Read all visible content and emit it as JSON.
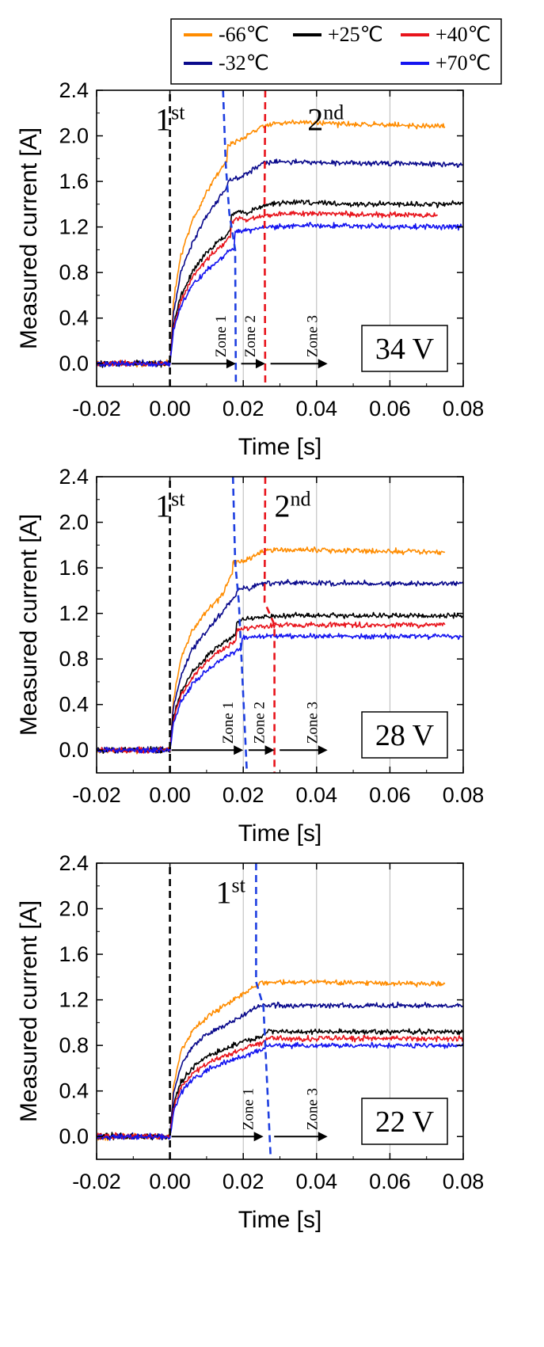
{
  "legend": {
    "entries": [
      {
        "label": "-66℃",
        "color": "#FF8C00"
      },
      {
        "label": "+25℃",
        "color": "#000000"
      },
      {
        "label": "+40℃",
        "color": "#E8141C"
      },
      {
        "label": "-32℃",
        "color": "#0A0A8C"
      },
      {
        "label": "+70℃",
        "color": "#1414F0"
      }
    ]
  },
  "chart_data": [
    {
      "type": "line",
      "voltage_label": "34 V",
      "xlabel": "Time [s]",
      "ylabel": "Measured current [A]",
      "xlim": [
        -0.02,
        0.08
      ],
      "ylim": [
        -0.2,
        2.4
      ],
      "xticks": [
        "-0.02",
        "0.00",
        "0.02",
        "0.04",
        "0.06",
        "0.08"
      ],
      "yticks": [
        "0.0",
        "0.4",
        "0.8",
        "1.2",
        "1.6",
        "2.0",
        "2.4"
      ],
      "vertical_gridlines_at": [
        0.02,
        0.04,
        0.06
      ],
      "x_end": 0.075,
      "series": [
        {
          "name": "-66℃",
          "color": "#FF8C00",
          "x": [
            0,
            0.001,
            0.003,
            0.006,
            0.01,
            0.014,
            0.0155,
            0.0158,
            0.02,
            0.026,
            0.035,
            0.05,
            0.075
          ],
          "y": [
            0,
            0.55,
            0.95,
            1.25,
            1.5,
            1.72,
            1.78,
            1.92,
            1.98,
            2.1,
            2.12,
            2.1,
            2.08
          ]
        },
        {
          "name": "-32℃",
          "color": "#0A0A8C",
          "x": [
            0,
            0.001,
            0.003,
            0.006,
            0.01,
            0.014,
            0.0155,
            0.0158,
            0.02,
            0.026,
            0.035,
            0.05,
            0.08
          ],
          "y": [
            0,
            0.45,
            0.8,
            1.05,
            1.3,
            1.48,
            1.55,
            1.6,
            1.65,
            1.77,
            1.77,
            1.76,
            1.75
          ]
        },
        {
          "name": "+25℃",
          "color": "#000000",
          "x": [
            0,
            0.001,
            0.003,
            0.006,
            0.01,
            0.015,
            0.0165,
            0.0168,
            0.019,
            0.021,
            0.026,
            0.035,
            0.05,
            0.08
          ],
          "y": [
            0,
            0.35,
            0.6,
            0.8,
            0.98,
            1.12,
            1.18,
            1.3,
            1.34,
            1.32,
            1.4,
            1.42,
            1.4,
            1.4
          ]
        },
        {
          "name": "+40℃",
          "color": "#E8141C",
          "x": [
            0,
            0.001,
            0.003,
            0.006,
            0.01,
            0.015,
            0.0165,
            0.0168,
            0.019,
            0.021,
            0.026,
            0.035,
            0.05,
            0.073
          ],
          "y": [
            0,
            0.32,
            0.55,
            0.75,
            0.92,
            1.06,
            1.12,
            1.25,
            1.28,
            1.26,
            1.3,
            1.32,
            1.31,
            1.3
          ]
        },
        {
          "name": "+70℃",
          "color": "#1414F0",
          "x": [
            0,
            0.001,
            0.003,
            0.006,
            0.01,
            0.015,
            0.0175,
            0.0178,
            0.02,
            0.026,
            0.035,
            0.05,
            0.08
          ],
          "y": [
            0,
            0.3,
            0.5,
            0.68,
            0.82,
            0.95,
            1.02,
            1.15,
            1.16,
            1.2,
            1.21,
            1.21,
            1.2
          ]
        }
      ],
      "dashed_markers": [
        {
          "color": "#000000",
          "points": [
            [
              0,
              -0.2
            ],
            [
              0,
              2.4
            ]
          ]
        },
        {
          "color": "#1E3FE0",
          "points": [
            [
              0.0145,
              2.4
            ],
            [
              0.0152,
              1.76
            ],
            [
              0.0162,
              1.32
            ],
            [
              0.0178,
              1.0
            ],
            [
              0.018,
              -0.2
            ]
          ]
        },
        {
          "color": "#E8141C",
          "points": [
            [
              0.026,
              2.4
            ],
            [
              0.0258,
              1.4
            ],
            [
              0.026,
              -0.2
            ]
          ]
        }
      ],
      "stage_labels": [
        {
          "base": "1",
          "sup": "st",
          "x": -0.004,
          "y": 2.05
        },
        {
          "base": "2",
          "sup": "nd",
          "x": 0.0375,
          "y": 2.05
        }
      ],
      "zones": [
        {
          "label": "Zone 1",
          "x_start": 0.0,
          "x_end": 0.018
        },
        {
          "label": "Zone 2",
          "x_start": 0.019,
          "x_end": 0.026
        },
        {
          "label": "Zone 3",
          "x_start": 0.027,
          "x_end": 0.043
        }
      ]
    },
    {
      "type": "line",
      "voltage_label": "28 V",
      "xlabel": "Time [s]",
      "ylabel": "Measured current [A]",
      "xlim": [
        -0.02,
        0.08
      ],
      "ylim": [
        -0.2,
        2.4
      ],
      "xticks": [
        "-0.02",
        "0.00",
        "0.02",
        "0.04",
        "0.06",
        "0.08"
      ],
      "yticks": [
        "0.0",
        "0.4",
        "0.8",
        "1.2",
        "1.6",
        "2.0",
        "2.4"
      ],
      "vertical_gridlines_at": [
        0.02,
        0.04,
        0.06
      ],
      "x_end": 0.075,
      "series": [
        {
          "name": "-66℃",
          "color": "#FF8C00",
          "x": [
            0,
            0.001,
            0.003,
            0.006,
            0.01,
            0.014,
            0.017,
            0.0172,
            0.02,
            0.026,
            0.035,
            0.05,
            0.075
          ],
          "y": [
            0,
            0.45,
            0.8,
            1.05,
            1.22,
            1.35,
            1.55,
            1.64,
            1.66,
            1.75,
            1.76,
            1.75,
            1.74
          ]
        },
        {
          "name": "-32℃",
          "color": "#0A0A8C",
          "x": [
            0,
            0.001,
            0.003,
            0.006,
            0.01,
            0.014,
            0.018,
            0.0182,
            0.021,
            0.026,
            0.035,
            0.05,
            0.08
          ],
          "y": [
            0,
            0.38,
            0.65,
            0.88,
            1.05,
            1.2,
            1.36,
            1.4,
            1.42,
            1.47,
            1.47,
            1.46,
            1.46
          ]
        },
        {
          "name": "+25℃",
          "color": "#000000",
          "x": [
            0,
            0.001,
            0.003,
            0.006,
            0.01,
            0.015,
            0.018,
            0.0182,
            0.021,
            0.026,
            0.035,
            0.05,
            0.08
          ],
          "y": [
            0,
            0.3,
            0.5,
            0.68,
            0.82,
            0.96,
            1.02,
            1.12,
            1.15,
            1.17,
            1.18,
            1.18,
            1.18
          ]
        },
        {
          "name": "+40℃",
          "color": "#E8141C",
          "x": [
            0,
            0.001,
            0.003,
            0.006,
            0.01,
            0.015,
            0.018,
            0.0182,
            0.021,
            0.026,
            0.035,
            0.05,
            0.075
          ],
          "y": [
            0,
            0.28,
            0.47,
            0.63,
            0.78,
            0.9,
            0.96,
            1.05,
            1.08,
            1.09,
            1.1,
            1.1,
            1.1
          ]
        },
        {
          "name": "+70℃",
          "color": "#1414F0",
          "x": [
            0,
            0.001,
            0.003,
            0.006,
            0.01,
            0.015,
            0.0195,
            0.0197,
            0.022,
            0.026,
            0.035,
            0.05,
            0.08
          ],
          "y": [
            0,
            0.25,
            0.42,
            0.57,
            0.7,
            0.82,
            0.9,
            0.98,
            1.0,
            1.0,
            1.0,
            1.0,
            1.0
          ]
        }
      ],
      "dashed_markers": [
        {
          "color": "#000000",
          "points": [
            [
              0,
              -0.2
            ],
            [
              0,
              2.4
            ]
          ]
        },
        {
          "color": "#1E3FE0",
          "points": [
            [
              0.0172,
              2.4
            ],
            [
              0.0178,
              1.65
            ],
            [
              0.0188,
              1.3
            ],
            [
              0.021,
              -0.2
            ]
          ]
        },
        {
          "color": "#E8141C",
          "points": [
            [
              0.026,
              2.4
            ],
            [
              0.0258,
              1.3
            ],
            [
              0.0285,
              1.1
            ],
            [
              0.0285,
              -0.2
            ]
          ]
        }
      ],
      "stage_labels": [
        {
          "base": "1",
          "sup": "st",
          "x": -0.004,
          "y": 2.05
        },
        {
          "base": "2",
          "sup": "nd",
          "x": 0.0285,
          "y": 2.05
        }
      ],
      "zones": [
        {
          "label": "Zone 1",
          "x_start": 0.0,
          "x_end": 0.02
        },
        {
          "label": "Zone 2",
          "x_start": 0.021,
          "x_end": 0.0285
        },
        {
          "label": "Zone 3",
          "x_start": 0.0295,
          "x_end": 0.043
        }
      ]
    },
    {
      "type": "line",
      "voltage_label": "22 V",
      "xlabel": "Time [s]",
      "ylabel": "Measured current [A]",
      "xlim": [
        -0.02,
        0.08
      ],
      "ylim": [
        -0.2,
        2.4
      ],
      "xticks": [
        "-0.02",
        "0.00",
        "0.02",
        "0.04",
        "0.06",
        "0.08"
      ],
      "yticks": [
        "0.0",
        "0.4",
        "0.8",
        "1.2",
        "1.6",
        "2.0",
        "2.4"
      ],
      "vertical_gridlines_at": [
        0.02,
        0.04,
        0.06
      ],
      "x_end": 0.075,
      "series": [
        {
          "name": "-66℃",
          "color": "#FF8C00",
          "x": [
            0,
            0.001,
            0.003,
            0.006,
            0.01,
            0.015,
            0.02,
            0.023,
            0.025,
            0.035,
            0.05,
            0.075
          ],
          "y": [
            0,
            0.45,
            0.75,
            0.92,
            1.05,
            1.15,
            1.25,
            1.32,
            1.35,
            1.36,
            1.35,
            1.34
          ]
        },
        {
          "name": "-32℃",
          "color": "#0A0A8C",
          "x": [
            0,
            0.001,
            0.003,
            0.006,
            0.01,
            0.015,
            0.02,
            0.023,
            0.025,
            0.035,
            0.05,
            0.08
          ],
          "y": [
            0,
            0.38,
            0.62,
            0.78,
            0.9,
            0.98,
            1.06,
            1.12,
            1.15,
            1.15,
            1.15,
            1.15
          ]
        },
        {
          "name": "+25℃",
          "color": "#000000",
          "x": [
            0,
            0.001,
            0.003,
            0.006,
            0.01,
            0.015,
            0.02,
            0.025,
            0.0268,
            0.03,
            0.035,
            0.05,
            0.08
          ],
          "y": [
            0,
            0.28,
            0.48,
            0.6,
            0.7,
            0.77,
            0.83,
            0.88,
            0.93,
            0.92,
            0.92,
            0.92,
            0.92
          ]
        },
        {
          "name": "+40℃",
          "color": "#E8141C",
          "x": [
            0,
            0.001,
            0.003,
            0.006,
            0.01,
            0.015,
            0.02,
            0.025,
            0.0268,
            0.03,
            0.035,
            0.05,
            0.08
          ],
          "y": [
            0,
            0.25,
            0.43,
            0.55,
            0.64,
            0.71,
            0.77,
            0.82,
            0.87,
            0.86,
            0.86,
            0.86,
            0.86
          ]
        },
        {
          "name": "+70℃",
          "color": "#1414F0",
          "x": [
            0,
            0.001,
            0.003,
            0.006,
            0.01,
            0.015,
            0.02,
            0.025,
            0.0268,
            0.03,
            0.035,
            0.05,
            0.08
          ],
          "y": [
            0,
            0.22,
            0.38,
            0.5,
            0.58,
            0.65,
            0.71,
            0.76,
            0.81,
            0.8,
            0.8,
            0.8,
            0.8
          ]
        }
      ],
      "dashed_markers": [
        {
          "color": "#000000",
          "points": [
            [
              0,
              -0.2
            ],
            [
              0,
              2.4
            ]
          ]
        },
        {
          "color": "#1E3FE0",
          "points": [
            [
              0.0235,
              2.4
            ],
            [
              0.0235,
              1.36
            ],
            [
              0.0255,
              1.14
            ],
            [
              0.0275,
              -0.2
            ]
          ]
        }
      ],
      "stage_labels": [
        {
          "base": "1",
          "sup": "st",
          "x": 0.0125,
          "y": 2.05
        }
      ],
      "zones": [
        {
          "label": "Zone 1",
          "x_start": 0.0,
          "x_end": 0.0255
        },
        {
          "label": "Zone 3",
          "x_start": 0.028,
          "x_end": 0.043
        }
      ]
    }
  ]
}
